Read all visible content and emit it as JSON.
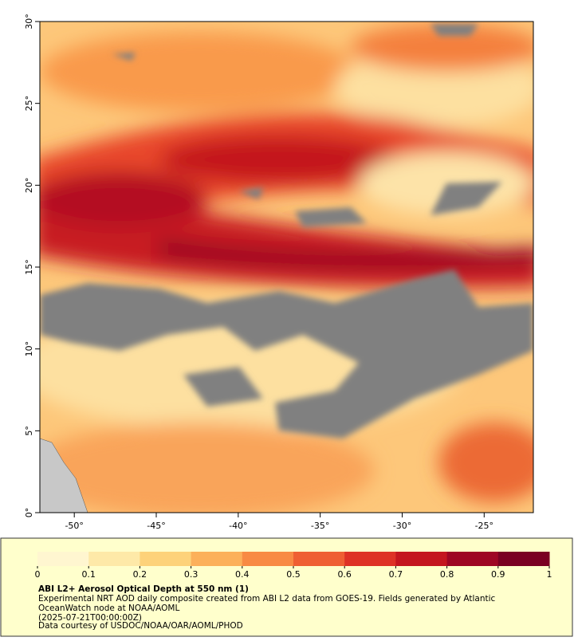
{
  "map": {
    "xlim": [
      -52.1,
      -22.0
    ],
    "ylim": [
      0,
      30
    ],
    "xticks": [
      {
        "value": -50,
        "label": "-50°"
      },
      {
        "value": -45,
        "label": "-45°"
      },
      {
        "value": -40,
        "label": "-40°"
      },
      {
        "value": -35,
        "label": "-35°"
      },
      {
        "value": -30,
        "label": "-30°"
      },
      {
        "value": -25,
        "label": "-25°"
      }
    ],
    "yticks": [
      {
        "value": 0,
        "label": "0°"
      },
      {
        "value": 5,
        "label": "5°"
      },
      {
        "value": 10,
        "label": "10°"
      },
      {
        "value": 15,
        "label": "15°"
      },
      {
        "value": 20,
        "label": "20°"
      },
      {
        "value": 25,
        "label": "25°"
      },
      {
        "value": 30,
        "label": "30°"
      }
    ]
  },
  "colorbar": {
    "lim": [
      0,
      1
    ],
    "ticks": [
      0,
      0.1,
      0.2,
      0.3,
      0.4,
      0.5,
      0.6,
      0.7,
      0.8,
      0.9,
      1
    ],
    "colors": [
      "#fff6d0",
      "#fee9a8",
      "#fdd27a",
      "#fcb05a",
      "#f88a44",
      "#ef5f33",
      "#de3226",
      "#c4161f",
      "#9e0624",
      "#7a0022"
    ]
  },
  "caption": {
    "title": "ABI L2+ Aerosol Optical Depth at 550 nm (1)",
    "lines": [
      "Experimental NRT AOD daily composite created from ABI L2 data from GOES-19. Fields generated by Atlantic",
      "OceanWatch node at NOAA/AOML",
      "(2025-07-21T00:00:00Z)",
      "Data courtesy of USDOC/NOAA/OAR/AOML/PHOD"
    ]
  }
}
